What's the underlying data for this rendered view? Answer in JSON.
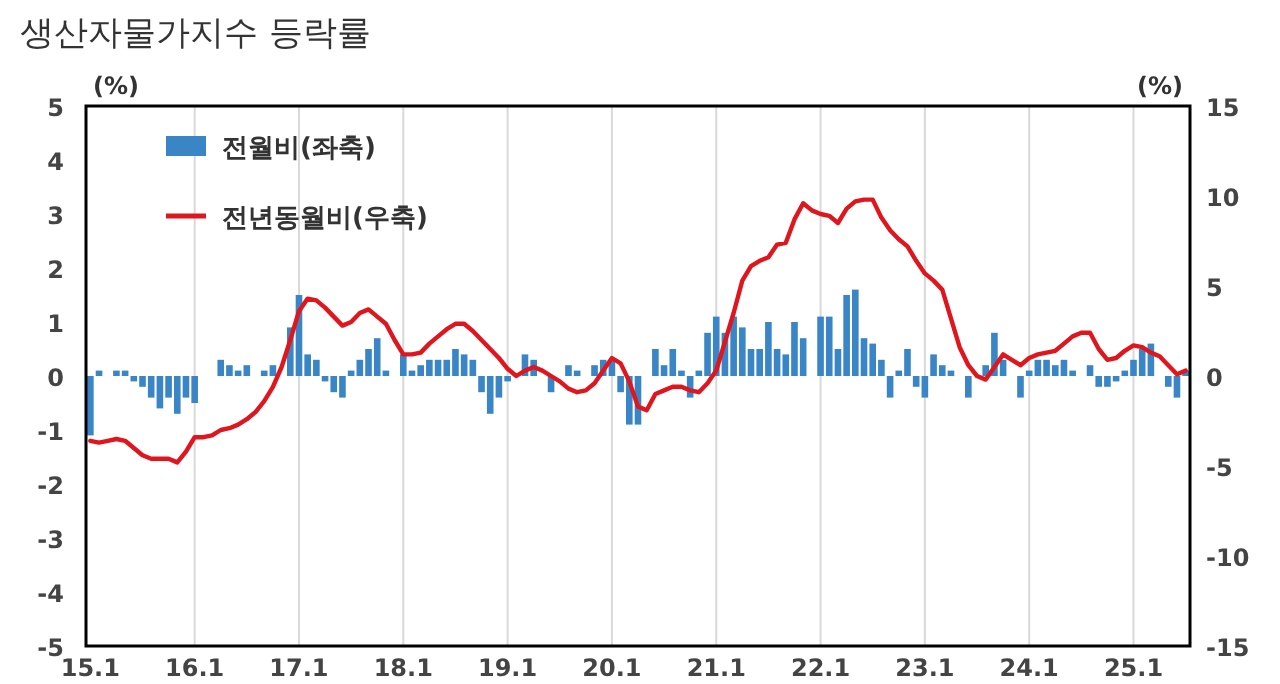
{
  "chart_data": {
    "type": "bar",
    "title": "생산자물가지수 등락률",
    "ylabel": "(%)",
    "y2label": "(%)",
    "categories": [
      "15.1",
      null,
      null,
      null,
      null,
      null,
      null,
      null,
      null,
      null,
      null,
      null,
      "16.1",
      null,
      null,
      null,
      null,
      null,
      null,
      null,
      null,
      null,
      null,
      null,
      "17.1",
      null,
      null,
      null,
      null,
      null,
      null,
      null,
      null,
      null,
      null,
      null,
      "18.1",
      null,
      null,
      null,
      null,
      null,
      null,
      null,
      null,
      null,
      null,
      null,
      "19.1",
      null,
      null,
      null,
      null,
      null,
      null,
      null,
      null,
      null,
      null,
      null,
      "20.1",
      null,
      null,
      null,
      null,
      null,
      null,
      null,
      null,
      null,
      null,
      null,
      "21.1",
      null,
      null,
      null,
      null,
      null,
      null,
      null,
      null,
      null,
      null,
      null,
      "22.1",
      null,
      null,
      null,
      null,
      null,
      null,
      null,
      null,
      null,
      null,
      null,
      "23.1",
      null,
      null,
      null,
      null,
      null,
      null,
      null,
      null,
      null,
      null,
      null,
      "24.1",
      null,
      null,
      null,
      null,
      null,
      null,
      null,
      null,
      null,
      null,
      null,
      "25.1",
      null,
      null,
      null,
      null,
      null,
      null
    ],
    "series": [
      {
        "name": "전월비(좌축)",
        "color": "#3a85c6",
        "values": [
          -1.1,
          0.1,
          0.0,
          0.1,
          0.1,
          -0.1,
          -0.2,
          -0.4,
          -0.6,
          -0.4,
          -0.7,
          -0.4,
          -0.5,
          0.0,
          0.0,
          0.3,
          0.2,
          0.1,
          0.2,
          0.0,
          0.1,
          0.2,
          null,
          0.9,
          1.5,
          0.4,
          0.3,
          -0.1,
          -0.3,
          -0.4,
          0.1,
          0.3,
          0.5,
          0.7,
          0.1,
          0.0,
          0.4,
          0.1,
          0.2,
          0.3,
          0.3,
          0.3,
          0.5,
          0.4,
          0.3,
          -0.3,
          -0.7,
          -0.4,
          -0.1,
          0.0,
          0.4,
          0.3,
          null,
          -0.3,
          0.0,
          0.2,
          0.1,
          0.0,
          0.2,
          0.3,
          0.3,
          -0.3,
          -0.9,
          -0.9,
          0.0,
          0.5,
          0.2,
          0.5,
          0.1,
          -0.4,
          0.1,
          0.8,
          1.1,
          0.8,
          1.1,
          0.9,
          0.5,
          0.5,
          1.0,
          0.5,
          0.4,
          1.0,
          0.7,
          0.0,
          1.1,
          1.1,
          0.5,
          1.5,
          1.6,
          0.7,
          0.6,
          0.3,
          -0.4,
          0.1,
          0.5,
          -0.2,
          -0.4,
          0.4,
          0.2,
          0.1,
          0.0,
          -0.4,
          null,
          0.2,
          0.8,
          0.3,
          0.0,
          -0.4,
          0.1,
          0.3,
          0.3,
          0.2,
          0.3,
          0.1,
          0.0,
          0.2,
          -0.2,
          -0.2,
          -0.1,
          0.1,
          0.3,
          0.5,
          0.6,
          0.0,
          -0.2,
          -0.4,
          0.1
        ]
      },
      {
        "name": "전년동월비(우축)",
        "type": "line",
        "axis": "y2",
        "color": "#e0161e",
        "values": [
          -3.6,
          -3.7,
          -3.6,
          -3.5,
          -3.6,
          -4.0,
          -4.4,
          -4.6,
          -4.6,
          -4.6,
          -4.8,
          -4.2,
          -3.4,
          -3.4,
          -3.3,
          -3.0,
          -2.9,
          -2.7,
          -2.4,
          -2.0,
          -1.4,
          -0.6,
          0.5,
          2.0,
          3.6,
          4.3,
          4.2,
          3.8,
          3.3,
          2.8,
          3.0,
          3.5,
          3.7,
          3.3,
          2.9,
          2.0,
          1.2,
          1.2,
          1.3,
          1.8,
          2.2,
          2.6,
          2.9,
          2.9,
          2.5,
          2.0,
          1.5,
          1.0,
          0.4,
          0.0,
          0.3,
          0.5,
          0.3,
          0.0,
          -0.3,
          -0.7,
          -0.9,
          -0.8,
          -0.4,
          0.3,
          1.0,
          0.7,
          -0.3,
          -1.7,
          -1.9,
          -1.0,
          -0.8,
          -0.6,
          -0.6,
          -0.8,
          -0.9,
          -0.4,
          0.3,
          1.9,
          3.5,
          5.3,
          6.1,
          6.4,
          6.6,
          7.3,
          7.4,
          8.7,
          9.6,
          9.2,
          9.0,
          8.9,
          8.5,
          9.3,
          9.7,
          9.8,
          9.8,
          8.8,
          8.1,
          7.6,
          7.2,
          6.4,
          5.7,
          5.3,
          4.8,
          3.2,
          1.6,
          0.6,
          0.0,
          -0.2,
          0.5,
          1.2,
          0.9,
          0.6,
          1.0,
          1.2,
          1.3,
          1.4,
          1.8,
          2.2,
          2.4,
          2.4,
          1.5,
          0.9,
          1.0,
          1.4,
          1.7,
          1.6,
          1.3,
          1.1,
          0.6,
          0.1,
          0.3
        ]
      }
    ],
    "ylim": [
      -5,
      5
    ],
    "yticks": [
      -5,
      -4,
      -3,
      -2,
      -1,
      0,
      1,
      2,
      3,
      4,
      5
    ],
    "y2lim": [
      -15,
      15
    ],
    "y2ticks": [
      -15,
      -10,
      -5,
      0,
      5,
      10,
      15
    ],
    "grid": "x",
    "legend": "top left"
  }
}
